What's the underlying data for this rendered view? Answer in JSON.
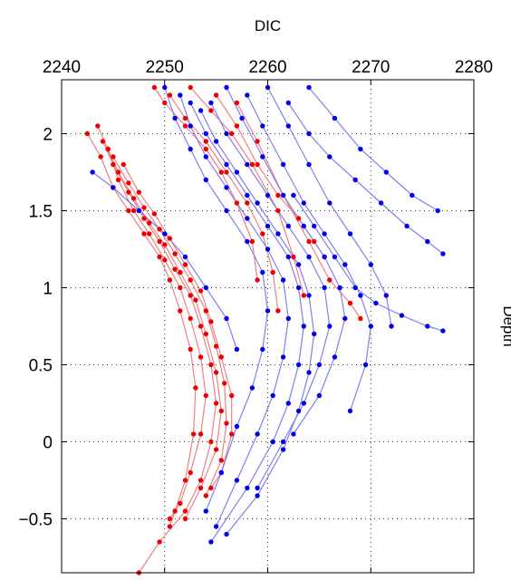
{
  "chart_data": {
    "type": "line",
    "xlabel": "DIC",
    "ylabel": "Depth",
    "xlim": [
      2240,
      2280
    ],
    "ylim": [
      -0.85,
      2.35
    ],
    "x_ticks": [
      2240,
      2250,
      2260,
      2270,
      2280
    ],
    "y_ticks": [
      -0.5,
      0,
      0.5,
      1,
      1.5,
      2
    ],
    "y_tick_labels": [
      "−0.5",
      "0",
      "0.5",
      "1",
      "1.5",
      "2"
    ],
    "x_axis_position": "top",
    "grid": true,
    "grid_style": "dotted",
    "markers": true,
    "colors": {
      "red": "#ee0000",
      "blue": "#0000ee",
      "red_line": "#f08080",
      "blue_line": "#8080ee"
    },
    "series": [
      {
        "color": "red",
        "x": [
          2242.5,
          2243.8,
          2245.0,
          2246.5,
          2248.0,
          2249.5,
          2250.5,
          2251.5,
          2252.5,
          2253.0,
          2252.8,
          2252.0,
          2251.0,
          2250.5
        ],
        "y": [
          2.0,
          1.85,
          1.65,
          1.5,
          1.35,
          1.2,
          1.05,
          0.85,
          0.6,
          0.35,
          0.05,
          -0.25,
          -0.45,
          -0.55
        ]
      },
      {
        "color": "red",
        "x": [
          2243.5,
          2244.5,
          2245.5,
          2247.0,
          2248.5,
          2250.0,
          2251.5,
          2252.5,
          2253.5,
          2254.0,
          2253.5,
          2252.5,
          2251.5,
          2250.5
        ],
        "y": [
          2.05,
          1.9,
          1.7,
          1.5,
          1.35,
          1.18,
          1.0,
          0.8,
          0.55,
          0.3,
          0.05,
          -0.2,
          -0.4,
          -0.5
        ]
      },
      {
        "color": "red",
        "x": [
          2244.0,
          2245.0,
          2246.5,
          2248.0,
          2249.5,
          2251.0,
          2252.5,
          2253.5,
          2254.5,
          2255.0,
          2254.5,
          2253.5,
          2252.0,
          2249.5,
          2247.5
        ],
        "y": [
          1.95,
          1.8,
          1.62,
          1.45,
          1.3,
          1.12,
          0.95,
          0.75,
          0.5,
          0.25,
          0.0,
          -0.25,
          -0.45,
          -0.65,
          -0.85
        ]
      },
      {
        "color": "red",
        "x": [
          2244.5,
          2245.5,
          2247.0,
          2248.5,
          2250.0,
          2251.5,
          2253.0,
          2254.0,
          2255.0,
          2255.5,
          2255.0,
          2253.5,
          2252.0
        ],
        "y": [
          1.9,
          1.75,
          1.58,
          1.42,
          1.28,
          1.1,
          0.92,
          0.7,
          0.45,
          0.2,
          -0.05,
          -0.3,
          -0.5
        ]
      },
      {
        "color": "red",
        "x": [
          2245.0,
          2246.5,
          2248.0,
          2249.5,
          2251.0,
          2252.5,
          2254.0,
          2255.0,
          2255.8,
          2256.0,
          2255.5,
          2254.0
        ],
        "y": [
          1.85,
          1.68,
          1.52,
          1.38,
          1.22,
          1.05,
          0.85,
          0.62,
          0.38,
          0.12,
          -0.12,
          -0.35
        ]
      },
      {
        "color": "red",
        "x": [
          2246.0,
          2247.5,
          2249.0,
          2250.5,
          2252.0,
          2253.5,
          2254.5,
          2255.5,
          2256.5,
          2256.5,
          2255.5,
          2254.5
        ],
        "y": [
          1.8,
          1.62,
          1.48,
          1.32,
          1.15,
          0.98,
          0.78,
          0.55,
          0.3,
          0.05,
          -0.2,
          -0.3
        ]
      },
      {
        "color": "red",
        "x": [
          2249.0,
          2250.0,
          2252.0,
          2254.0,
          2255.5,
          2257.0,
          2258.5,
          2259.0
        ],
        "y": [
          2.3,
          2.2,
          2.05,
          1.9,
          1.75,
          1.55,
          1.3,
          1.05
        ]
      },
      {
        "color": "red",
        "x": [
          2250.5,
          2252.0,
          2254.0,
          2256.0,
          2258.0,
          2259.5,
          2260.5,
          2261.0
        ],
        "y": [
          2.25,
          2.1,
          1.95,
          1.75,
          1.55,
          1.35,
          1.1,
          0.85
        ]
      },
      {
        "color": "red",
        "x": [
          2252.5,
          2254.5,
          2256.5,
          2258.5,
          2261.0,
          2262.5,
          2263.5
        ],
        "y": [
          2.3,
          2.15,
          2.0,
          1.8,
          1.5,
          1.2,
          0.95
        ]
      },
      {
        "color": "red",
        "x": [
          2255.0,
          2257.0,
          2259.0,
          2261.0,
          2263.0,
          2264.5,
          2265.5
        ],
        "y": [
          2.25,
          2.05,
          1.8,
          1.6,
          1.45,
          1.3,
          1.2
        ]
      },
      {
        "color": "red",
        "x": [
          2257.0,
          2259.0,
          2261.5,
          2264.0,
          2266.0,
          2268.0,
          2269.0
        ],
        "y": [
          2.2,
          1.95,
          1.6,
          1.3,
          1.05,
          0.9,
          0.8
        ]
      },
      {
        "color": "blue",
        "x": [
          2250.0,
          2251.0,
          2252.5,
          2254.0,
          2256.0,
          2258.0,
          2259.5,
          2260.0,
          2259.5,
          2258.5,
          2257.0,
          2255.5,
          2254.0
        ],
        "y": [
          2.3,
          2.1,
          1.9,
          1.7,
          1.5,
          1.3,
          1.1,
          0.85,
          0.6,
          0.35,
          0.1,
          -0.2,
          -0.45
        ]
      },
      {
        "color": "blue",
        "x": [
          2251.5,
          2252.5,
          2254.0,
          2256.0,
          2258.0,
          2260.0,
          2261.5,
          2262.0,
          2261.5,
          2260.5,
          2259.0,
          2257.0,
          2255.0
        ],
        "y": [
          2.25,
          2.05,
          1.85,
          1.65,
          1.45,
          1.25,
          1.05,
          0.8,
          0.55,
          0.3,
          0.05,
          -0.25,
          -0.55
        ]
      },
      {
        "color": "blue",
        "x": [
          2252.5,
          2254.0,
          2256.0,
          2258.0,
          2260.0,
          2262.0,
          2263.0,
          2263.5,
          2263.0,
          2262.0,
          2260.5,
          2258.0,
          2254.5
        ],
        "y": [
          2.2,
          2.0,
          1.8,
          1.6,
          1.4,
          1.2,
          1.0,
          0.75,
          0.5,
          0.25,
          0.0,
          -0.3,
          -0.65
        ]
      },
      {
        "color": "blue",
        "x": [
          2253.5,
          2255.0,
          2257.0,
          2259.0,
          2261.0,
          2263.0,
          2264.0,
          2264.5,
          2264.0,
          2263.0,
          2261.5,
          2259.0,
          2256.0
        ],
        "y": [
          2.15,
          1.95,
          1.75,
          1.55,
          1.35,
          1.15,
          0.95,
          0.7,
          0.45,
          0.2,
          -0.05,
          -0.35,
          -0.6
        ]
      },
      {
        "color": "blue",
        "x": [
          2254.5,
          2256.0,
          2258.0,
          2260.0,
          2262.0,
          2264.0,
          2265.5,
          2266.0,
          2265.0,
          2263.5,
          2261.5,
          2259.0
        ],
        "y": [
          2.2,
          2.0,
          1.8,
          1.6,
          1.4,
          1.2,
          1.0,
          0.75,
          0.5,
          0.25,
          0.0,
          -0.3
        ]
      },
      {
        "color": "blue",
        "x": [
          2256.0,
          2257.5,
          2259.5,
          2261.5,
          2263.5,
          2265.5,
          2267.0,
          2267.5,
          2266.5,
          2265.0,
          2262.5
        ],
        "y": [
          2.3,
          2.1,
          1.85,
          1.6,
          1.4,
          1.2,
          1.0,
          0.8,
          0.55,
          0.3,
          0.05
        ]
      },
      {
        "color": "blue",
        "x": [
          2258.0,
          2259.5,
          2261.5,
          2263.5,
          2265.5,
          2267.5,
          2269.0,
          2270.0,
          2269.5,
          2268.0
        ],
        "y": [
          2.25,
          2.05,
          1.8,
          1.55,
          1.35,
          1.15,
          0.95,
          0.75,
          0.5,
          0.2
        ]
      },
      {
        "color": "blue",
        "x": [
          2260.0,
          2262.0,
          2264.0,
          2266.0,
          2268.0,
          2270.0,
          2271.5,
          2272.0
        ],
        "y": [
          2.3,
          2.05,
          1.8,
          1.55,
          1.35,
          1.15,
          0.95,
          0.75
        ]
      },
      {
        "color": "blue",
        "x": [
          2262.0,
          2264.0,
          2266.0,
          2268.5,
          2271.0,
          2273.5,
          2275.5,
          2277.0
        ],
        "y": [
          2.2,
          2.0,
          1.85,
          1.7,
          1.55,
          1.4,
          1.3,
          1.22
        ]
      },
      {
        "color": "blue",
        "x": [
          2264.0,
          2266.5,
          2269.0,
          2271.5,
          2274.0,
          2276.5
        ],
        "y": [
          2.3,
          2.1,
          1.9,
          1.75,
          1.6,
          1.5
        ]
      },
      {
        "color": "blue",
        "x": [
          2262.5,
          2264.5,
          2266.5,
          2268.5,
          2270.5,
          2273.0,
          2275.5,
          2277.0
        ],
        "y": [
          1.6,
          1.4,
          1.2,
          1.0,
          0.9,
          0.82,
          0.75,
          0.72
        ]
      },
      {
        "color": "blue",
        "x": [
          2243.0,
          2245.0,
          2247.5,
          2250.0,
          2252.0,
          2254.0,
          2256.0,
          2257.0
        ],
        "y": [
          1.75,
          1.65,
          1.5,
          1.35,
          1.2,
          1.0,
          0.8,
          0.6
        ]
      }
    ]
  }
}
